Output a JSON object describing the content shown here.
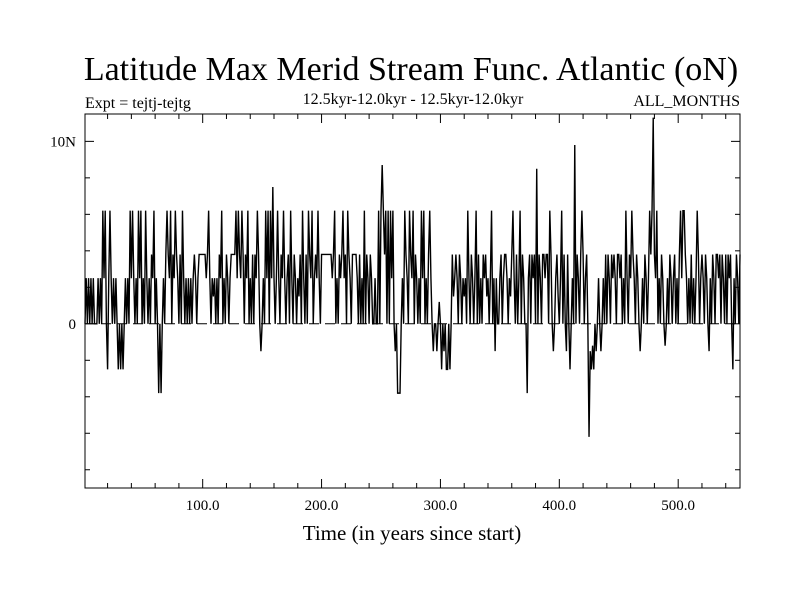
{
  "chart_data": {
    "type": "line",
    "title": "Latitude Max Merid Stream Func. Atlantic (oN)",
    "experiment": "Expt = tejtj-tejtg",
    "period": "12.5kyr-12.0kyr - 12.5kyr-12.0kyr",
    "months": "ALL_MONTHS",
    "xlabel": "Time (in years since start)",
    "ylabel": "",
    "xlim": [
      1,
      552
    ],
    "ylim": [
      -9,
      11.5
    ],
    "x_ticks": [
      {
        "value": 100,
        "label": "100.0"
      },
      {
        "value": 200,
        "label": "200.0"
      },
      {
        "value": 300,
        "label": "300.0"
      },
      {
        "value": 400,
        "label": "400.0"
      },
      {
        "value": 500,
        "label": "500.0"
      }
    ],
    "y_ticks": [
      {
        "value": 10,
        "label": "10N"
      },
      {
        "value": 0,
        "label": "0"
      }
    ],
    "reference_line": {
      "y": 0,
      "style": "dashed"
    },
    "grid": false,
    "series": [
      {
        "values": [
          0,
          2.5,
          0,
          2.5,
          0,
          2.5,
          0,
          2.5,
          0,
          0,
          0,
          2.5,
          0,
          2.5,
          0,
          6.2,
          2.5,
          6.2,
          0,
          -2.5,
          2.5,
          6.2,
          2.5,
          0,
          2.5,
          0,
          2.5,
          0,
          -2.5,
          0,
          -2.5,
          0,
          -2.5,
          0,
          2.5,
          0,
          2.5,
          0,
          6.2,
          2.5,
          6.2,
          2.5,
          0,
          2.5,
          0,
          6.2,
          2.5,
          6.2,
          0,
          2.5,
          0,
          6.2,
          2.5,
          0,
          2.5,
          0,
          3.8,
          2.5,
          6.2,
          0,
          2.5,
          0,
          -3.8,
          0,
          -3.8,
          0,
          2.5,
          0,
          3.8,
          6.2,
          3.8,
          2.5,
          6.2,
          0,
          3.8,
          2.5,
          6.2,
          3.8,
          2.5,
          0,
          3.8,
          0,
          6.2,
          2.5,
          0,
          2.5,
          0,
          2.5,
          0,
          2.5,
          0,
          2.5,
          3.8,
          2.5,
          0,
          2.5,
          3.8,
          3.8,
          3.8,
          3.8,
          3.8,
          3.8,
          2.5,
          3.8,
          6.2,
          2.5,
          0,
          2.5,
          1.5,
          2.5,
          0,
          2.5,
          0,
          3.8,
          2.5,
          6.2,
          0,
          2.5,
          0,
          3.8,
          2.5,
          0,
          2.5,
          3.8,
          3.8,
          3.8,
          3.8,
          6.2,
          2.5,
          6.2,
          3.8,
          2.5,
          6.2,
          3.8,
          0,
          3.8,
          2.5,
          6.2,
          0,
          2.5,
          0,
          3.8,
          0,
          3.8,
          2.5,
          6.2,
          3.8,
          0,
          -1.5,
          0,
          2.5,
          0,
          6.2,
          2.5,
          6.2,
          0,
          6.2,
          2.5,
          7.5,
          2.5,
          0,
          2.5,
          6.2,
          2.5,
          0,
          3.8,
          2.5,
          6.2,
          2.5,
          0,
          2.5,
          3.8,
          0,
          6.2,
          2.5,
          0,
          3.8,
          2.5,
          0,
          2.5,
          1.5,
          3.8,
          0,
          6.2,
          2.5,
          0,
          3.8,
          0,
          6.2,
          3.8,
          2.5,
          6.2,
          0,
          2.5,
          3.8,
          2.5,
          6.2,
          2.5,
          0,
          3.8,
          3.8,
          3.8,
          3.8,
          3.8,
          3.8,
          3.8,
          3.8,
          3.8,
          2.5,
          3.8,
          6.2,
          0,
          2.5,
          0,
          3.8,
          2.5,
          3.8,
          6.2,
          2.5,
          3.8,
          0,
          6.2,
          3.8,
          2.5,
          0,
          3.8,
          3.8,
          3.8,
          3.8,
          2.5,
          0,
          3.8,
          0,
          2.5,
          0,
          6.2,
          0,
          3.8,
          2.5,
          0,
          3.8,
          2.5,
          0,
          0,
          2.5,
          0,
          0,
          6.2,
          0,
          6.2,
          8.7,
          6.2,
          3.8,
          6.2,
          0,
          6.2,
          0,
          6.2,
          2.5,
          6.2,
          0,
          -1.5,
          0,
          -3.8,
          -3.8,
          -3.8,
          0,
          2.5,
          0,
          6.2,
          3.8,
          2.5,
          0,
          6.2,
          3.8,
          2.5,
          6.2,
          0,
          3.8,
          2.5,
          0,
          2.5,
          0,
          6.2,
          2.5,
          6.2,
          0,
          2.5,
          0,
          3.8,
          6.2,
          2.5,
          0,
          -1.5,
          0,
          0,
          -1.5,
          0,
          1.2,
          0,
          -2.5,
          0,
          -1.5,
          0,
          -2.5,
          -2.5,
          0,
          -2.5,
          0,
          3.8,
          1.5,
          2.5,
          3.8,
          2.5,
          0,
          3.8,
          2.5,
          0,
          2.5,
          1.5,
          2.5,
          0,
          6.2,
          2.5,
          0,
          3.8,
          2.5,
          0,
          2.5,
          6.2,
          0,
          3.8,
          0,
          2.5,
          0,
          3.8,
          2.5,
          3.8,
          1.5,
          2.5,
          0,
          2.5,
          6.2,
          0,
          2.5,
          -1.5,
          2.5,
          0,
          0,
          2.5,
          3.8,
          0,
          2.5,
          3.8,
          3.8,
          2.5,
          0,
          2.5,
          1.5,
          3.8,
          6.2,
          2.5,
          0,
          3.8,
          0,
          2.5,
          6.2,
          0,
          3.8,
          2.5,
          0,
          0,
          -3.8,
          2.5,
          3.8,
          0,
          3.8,
          2.5,
          3.8,
          0,
          8.5,
          0,
          3.8,
          2.5,
          0,
          3.8,
          3.8,
          2.5,
          3.8,
          3.8,
          0,
          6.2,
          3.8,
          0,
          -1.5,
          0,
          2.5,
          3.8,
          1.5,
          0,
          2.5,
          6.2,
          0,
          3.8,
          0,
          -1.5,
          3.8,
          0,
          -2.5,
          0,
          2.5,
          0,
          9.8,
          0,
          3.8,
          2.5,
          0,
          3.8,
          6.2,
          3.8,
          0,
          2.5,
          3.8,
          0,
          -6.2,
          -1.5,
          -2.5,
          -1.2,
          -2.5,
          0,
          -1.5,
          0,
          2.5,
          0,
          -1.5,
          0,
          2.5,
          0,
          3.8,
          0,
          3.8,
          2.5,
          0,
          3.8,
          2.5,
          3.8,
          2.5,
          0,
          3.8,
          3.8,
          2.5,
          3.8,
          0,
          2.5,
          0,
          6.2,
          2.5,
          0,
          3.8,
          2.5,
          6.2,
          3.8,
          2.5,
          0,
          3.8,
          2.5,
          0,
          -1.5,
          0,
          2.5,
          0,
          3.8,
          2.5,
          0,
          2.5,
          6.2,
          3.8,
          6.2,
          11.3,
          3.8,
          2.5,
          6.2,
          0,
          2.5,
          0,
          3.8,
          2.5,
          0,
          -1.2,
          0,
          2.5,
          0,
          3.8,
          2.5,
          0,
          2.5,
          3.8,
          0,
          2.5,
          0,
          3.8,
          6.2,
          2.5,
          6.2,
          6.2,
          3.8,
          2.5,
          0,
          2.5,
          0,
          3.8,
          0,
          2.5,
          0,
          2.5,
          6.2,
          3.8,
          0,
          2.5,
          3.8,
          2.5,
          0,
          3.8,
          2.5,
          0,
          -1.5,
          2.5,
          0,
          3.8,
          2.5,
          0,
          3.8,
          3.8,
          2.5,
          3.8,
          0,
          3.8,
          2.5,
          0,
          3.8,
          0,
          3.8,
          2.5,
          3.8,
          0,
          -2.5,
          2.5,
          0,
          3.8,
          2.5,
          0,
          3.8
        ]
      }
    ]
  }
}
